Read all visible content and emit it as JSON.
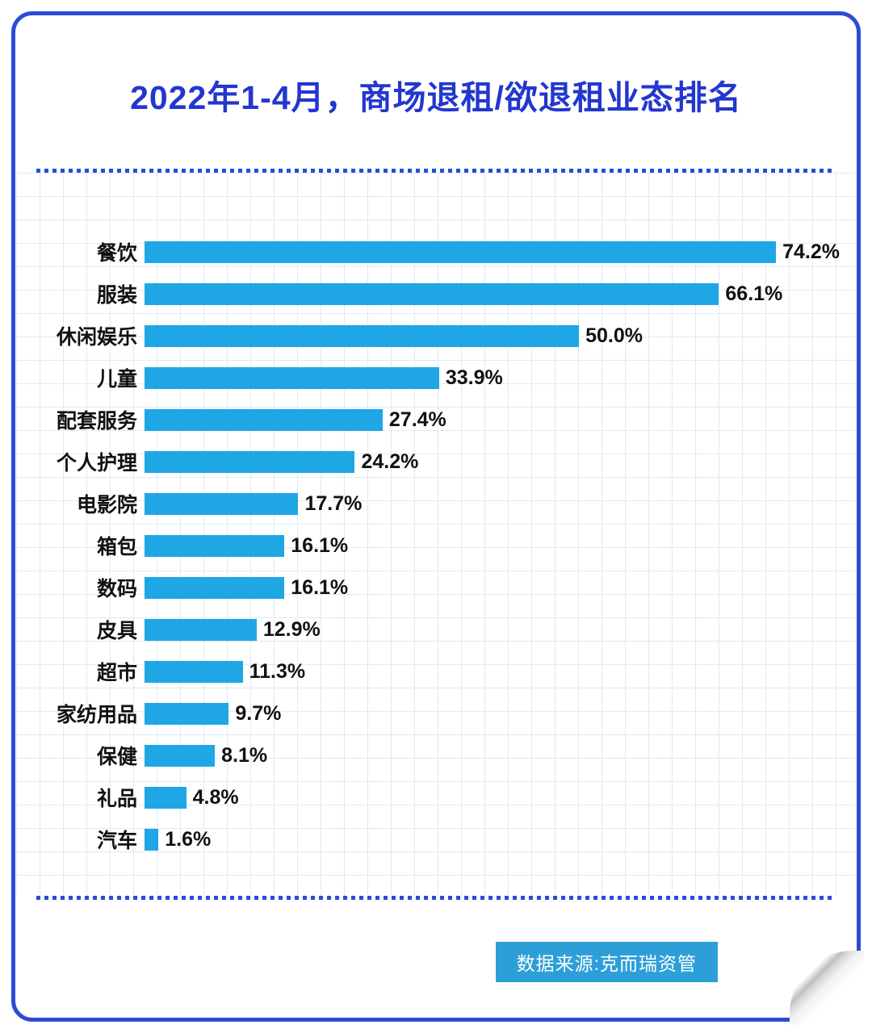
{
  "page": {
    "title": "2022年1-4月，商场退租/欲退租业态排名",
    "source_label": "数据来源:克而瑞资管"
  },
  "colors": {
    "frame_border": "#2b4bd7",
    "title_text": "#2337cf",
    "bar": "#1fa6e4",
    "footer_badge_bg": "#2d9fd8",
    "grid_line": "#dcebf7",
    "label_text": "#111111"
  },
  "chart_data": {
    "type": "bar",
    "orientation": "horizontal",
    "title": "2022年1-4月，商场退租/欲退租业态排名",
    "xlabel": "",
    "ylabel": "",
    "xlim": [
      0,
      80
    ],
    "grid": true,
    "legend": false,
    "bar_color": "#1fa6e4",
    "categories": [
      "餐饮",
      "服装",
      "休闲娱乐",
      "儿童",
      "配套服务",
      "个人护理",
      "电影院",
      "箱包",
      "数码",
      "皮具",
      "超市",
      "家纺用品",
      "保健",
      "礼品",
      "汽车"
    ],
    "values": [
      74.2,
      66.1,
      50.0,
      33.9,
      27.4,
      24.2,
      17.7,
      16.1,
      16.1,
      12.9,
      11.3,
      9.7,
      8.1,
      4.8,
      1.6
    ],
    "value_labels": [
      "74.2%",
      "66.1%",
      "50.0%",
      "33.9%",
      "27.4%",
      "24.2%",
      "17.7%",
      "16.1%",
      "16.1%",
      "12.9%",
      "11.3%",
      "9.7%",
      "8.1%",
      "4.8%",
      "1.6%"
    ],
    "source": "数据来源:克而瑞资管"
  }
}
